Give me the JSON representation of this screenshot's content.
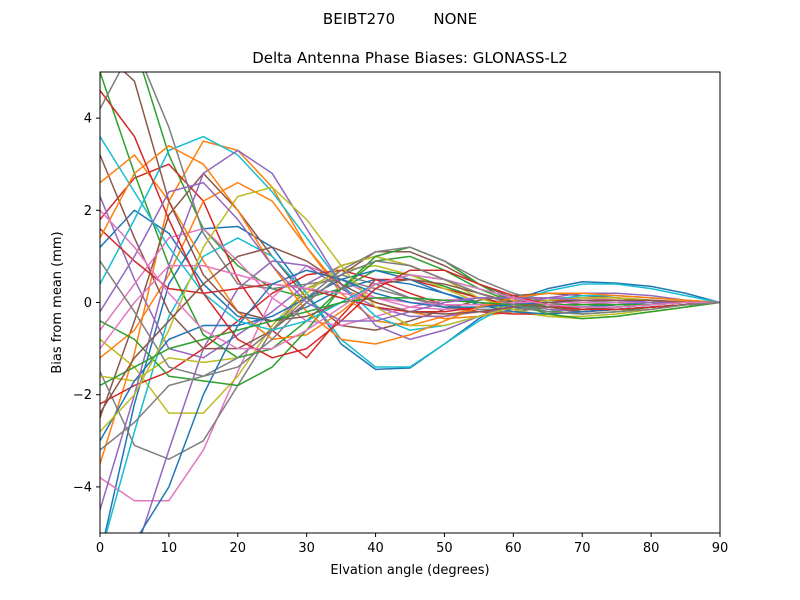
{
  "figure": {
    "suptitle": "BEIBT270        NONE"
  },
  "chart_data": {
    "type": "line",
    "title": "Delta Antenna Phase Biases: GLONASS-L2",
    "xlabel": "Elvation angle (degrees)",
    "ylabel": "Bias from mean (mm)",
    "xlim": [
      0,
      90
    ],
    "ylim": [
      -5,
      5
    ],
    "xticks": [
      0,
      10,
      20,
      30,
      40,
      50,
      60,
      70,
      80,
      90
    ],
    "yticks": [
      -4,
      -2,
      0,
      2,
      4
    ],
    "xtick_labels": [
      "0",
      "10",
      "20",
      "30",
      "40",
      "50",
      "60",
      "70",
      "80",
      "90"
    ],
    "ytick_labels": [
      "−4",
      "−2",
      "0",
      "2",
      "4"
    ],
    "grid": false,
    "legend": "none",
    "colors": [
      "#1f77b4",
      "#ff7f0e",
      "#2ca02c",
      "#d62728",
      "#9467bd",
      "#8c564b",
      "#e377c2",
      "#7f7f7f",
      "#bcbd22",
      "#17becf"
    ],
    "x": [
      0,
      5,
      10,
      15,
      20,
      25,
      30,
      35,
      40,
      45,
      50,
      55,
      60,
      65,
      70,
      75,
      80,
      85,
      90
    ],
    "series": [
      {
        "values": [
          -5.5,
          -2.2,
          0.4,
          1.6,
          1.65,
          1.2,
          0.2,
          -0.9,
          -1.45,
          -1.42,
          -0.9,
          -0.35,
          0.05,
          0.3,
          0.45,
          0.42,
          0.35,
          0.2,
          0.0
        ]
      },
      {
        "values": [
          -3.5,
          -1.1,
          2.2,
          3.5,
          3.3,
          2.5,
          1.2,
          0.3,
          0.0,
          -0.2,
          -0.35,
          -0.3,
          -0.2,
          -0.1,
          0.0,
          0.05,
          0.05,
          0.02,
          0.0
        ]
      },
      {
        "values": [
          6.0,
          5.6,
          3.2,
          1.6,
          0.8,
          0.3,
          0.1,
          0.3,
          0.7,
          0.6,
          0.35,
          0.1,
          -0.1,
          -0.2,
          -0.15,
          -0.1,
          -0.05,
          0.0,
          0.0
        ]
      },
      {
        "values": [
          1.8,
          2.7,
          3.0,
          2.2,
          0.5,
          -0.6,
          -1.2,
          -0.3,
          0.5,
          0.5,
          0.3,
          0.1,
          -0.05,
          -0.1,
          -0.1,
          -0.05,
          0.0,
          0.0,
          0.0
        ]
      },
      {
        "values": [
          2.3,
          0.5,
          -1.0,
          -1.2,
          -0.7,
          -0.2,
          0.4,
          0.8,
          1.0,
          0.8,
          0.5,
          0.2,
          0.0,
          -0.15,
          -0.2,
          -0.15,
          -0.1,
          -0.05,
          0.0
        ]
      },
      {
        "values": [
          -2.5,
          -0.4,
          1.9,
          2.8,
          2.0,
          1.0,
          0.1,
          -0.5,
          -0.6,
          -0.4,
          -0.15,
          0.05,
          0.15,
          0.2,
          0.15,
          0.1,
          0.05,
          0.0,
          0.0
        ]
      },
      {
        "values": [
          -3.8,
          -4.3,
          -4.3,
          -3.2,
          -1.5,
          0.1,
          0.8,
          0.5,
          0.1,
          -0.1,
          -0.15,
          -0.1,
          -0.05,
          0.0,
          0.05,
          0.05,
          0.05,
          0.0,
          0.0
        ]
      },
      {
        "values": [
          -1.5,
          -3.1,
          -3.4,
          -3.0,
          -1.8,
          -0.6,
          0.3,
          0.6,
          0.4,
          0.1,
          -0.1,
          -0.2,
          -0.2,
          -0.1,
          0.0,
          0.05,
          0.05,
          0.0,
          0.0
        ]
      },
      {
        "values": [
          -0.8,
          -1.4,
          -2.4,
          -2.4,
          -1.6,
          -0.5,
          0.3,
          0.7,
          0.8,
          0.6,
          0.3,
          0.0,
          -0.2,
          -0.3,
          -0.3,
          -0.25,
          -0.15,
          -0.05,
          0.0
        ]
      },
      {
        "values": [
          -5.5,
          -2.8,
          -0.3,
          1.0,
          1.4,
          1.0,
          0.2,
          -0.8,
          -1.4,
          -1.4,
          -0.9,
          -0.4,
          0.0,
          0.25,
          0.4,
          0.4,
          0.3,
          0.15,
          0.0
        ]
      },
      {
        "values": [
          1.2,
          2.0,
          1.5,
          0.4,
          -0.3,
          -0.4,
          -0.1,
          0.3,
          0.5,
          0.4,
          0.2,
          0.0,
          -0.1,
          -0.1,
          -0.1,
          -0.05,
          0.0,
          0.0,
          0.0
        ]
      },
      {
        "values": [
          -1.2,
          -0.6,
          0.6,
          2.2,
          2.6,
          2.2,
          1.2,
          0.2,
          -0.4,
          -0.5,
          -0.3,
          -0.1,
          0.05,
          0.1,
          0.1,
          0.1,
          0.05,
          0.0,
          0.0
        ]
      },
      {
        "values": [
          5.0,
          2.8,
          0.8,
          -0.7,
          -1.2,
          -1.0,
          -0.4,
          0.3,
          0.9,
          1.0,
          0.7,
          0.3,
          0.0,
          -0.2,
          -0.25,
          -0.2,
          -0.1,
          -0.05,
          0.0
        ]
      },
      {
        "values": [
          -2.2,
          -1.8,
          -1.5,
          -1.0,
          -0.4,
          0.2,
          0.6,
          0.7,
          0.5,
          0.2,
          -0.05,
          -0.2,
          -0.25,
          -0.25,
          -0.2,
          -0.15,
          -0.1,
          -0.05,
          0.0
        ]
      },
      {
        "values": [
          -6.0,
          -5.5,
          -3.2,
          -1.0,
          0.3,
          0.9,
          0.8,
          0.3,
          -0.1,
          -0.3,
          -0.3,
          -0.2,
          -0.1,
          0.0,
          0.05,
          0.05,
          0.05,
          0.0,
          0.0
        ]
      },
      {
        "values": [
          3.2,
          1.4,
          -0.2,
          -1.0,
          -1.0,
          -0.6,
          0.0,
          0.6,
          1.1,
          1.1,
          0.8,
          0.4,
          0.1,
          -0.1,
          -0.2,
          -0.15,
          -0.1,
          -0.05,
          0.0
        ]
      },
      {
        "values": [
          -0.6,
          0.4,
          1.4,
          1.6,
          0.9,
          0.1,
          -0.4,
          -0.5,
          -0.3,
          -0.1,
          0.05,
          0.1,
          0.1,
          0.1,
          0.1,
          0.05,
          0.05,
          0.0,
          0.0
        ]
      },
      {
        "values": [
          4.2,
          5.6,
          3.8,
          1.5,
          0.4,
          0.3,
          0.4,
          0.5,
          0.3,
          0.1,
          -0.05,
          -0.15,
          -0.15,
          -0.1,
          -0.05,
          0.0,
          0.0,
          0.0,
          0.0
        ]
      },
      {
        "values": [
          -1.6,
          -1.7,
          -1.2,
          -1.3,
          -1.2,
          -0.6,
          0.2,
          0.8,
          1.0,
          0.8,
          0.5,
          0.1,
          -0.15,
          -0.3,
          -0.35,
          -0.3,
          -0.2,
          -0.1,
          0.0
        ]
      },
      {
        "values": [
          0.4,
          1.8,
          3.3,
          3.6,
          3.2,
          2.4,
          1.4,
          0.4,
          -0.3,
          -0.6,
          -0.5,
          -0.3,
          -0.1,
          0.05,
          0.15,
          0.15,
          0.1,
          0.05,
          0.0
        ]
      },
      {
        "values": [
          -3.0,
          -1.7,
          -0.8,
          -0.5,
          -0.5,
          -0.3,
          0.1,
          0.5,
          0.7,
          0.5,
          0.2,
          -0.05,
          -0.2,
          -0.25,
          -0.2,
          -0.15,
          -0.1,
          -0.05,
          0.0
        ]
      },
      {
        "values": [
          2.6,
          3.2,
          2.2,
          0.9,
          -0.2,
          -0.8,
          -0.7,
          -0.2,
          0.4,
          0.6,
          0.5,
          0.2,
          0.0,
          -0.1,
          -0.15,
          -0.1,
          -0.05,
          0.0,
          0.0
        ]
      },
      {
        "values": [
          -0.4,
          -0.8,
          -1.6,
          -1.7,
          -1.8,
          -1.4,
          -0.6,
          0.3,
          1.0,
          1.2,
          0.9,
          0.4,
          0.0,
          -0.25,
          -0.35,
          -0.3,
          -0.2,
          -0.1,
          0.0
        ]
      },
      {
        "values": [
          1.6,
          0.9,
          0.3,
          0.2,
          0.3,
          0.4,
          0.3,
          0.1,
          -0.1,
          -0.2,
          -0.2,
          -0.1,
          0.0,
          0.05,
          0.05,
          0.05,
          0.0,
          0.0,
          0.0
        ]
      },
      {
        "values": [
          -4.5,
          -2.0,
          0.8,
          2.8,
          3.3,
          2.8,
          1.6,
          0.4,
          -0.5,
          -0.8,
          -0.6,
          -0.3,
          -0.05,
          0.1,
          0.2,
          0.2,
          0.15,
          0.05,
          0.0
        ]
      },
      {
        "values": [
          5.5,
          4.8,
          2.2,
          0.6,
          -0.2,
          -0.4,
          -0.3,
          0.0,
          0.4,
          0.5,
          0.4,
          0.2,
          0.0,
          -0.1,
          -0.15,
          -0.1,
          -0.05,
          0.0,
          0.0
        ]
      },
      {
        "values": [
          -1.0,
          0.0,
          0.8,
          0.8,
          0.6,
          0.4,
          0.3,
          0.2,
          0.1,
          0.0,
          -0.05,
          -0.05,
          0.0,
          0.0,
          0.0,
          0.0,
          0.0,
          0.0,
          0.0
        ]
      },
      {
        "values": [
          0.9,
          -0.2,
          -1.4,
          -1.6,
          -1.2,
          -0.6,
          0.1,
          0.7,
          1.1,
          1.2,
          0.9,
          0.5,
          0.2,
          0.0,
          -0.1,
          -0.1,
          -0.05,
          0.0,
          0.0
        ]
      },
      {
        "values": [
          -2.8,
          -2.0,
          -0.6,
          1.2,
          2.3,
          2.5,
          1.8,
          0.8,
          -0.1,
          -0.5,
          -0.5,
          -0.3,
          -0.1,
          0.05,
          0.1,
          0.1,
          0.05,
          0.0,
          0.0
        ]
      },
      {
        "values": [
          3.6,
          2.4,
          1.2,
          0.2,
          -0.4,
          -0.6,
          -0.4,
          0.0,
          0.4,
          0.6,
          0.5,
          0.3,
          0.1,
          -0.05,
          -0.1,
          -0.1,
          -0.05,
          0.0,
          0.0
        ]
      },
      {
        "values": [
          -5.0,
          -5.2,
          -4.0,
          -2.0,
          -0.5,
          0.4,
          0.7,
          0.5,
          0.2,
          0.0,
          -0.1,
          -0.1,
          -0.05,
          0.0,
          0.05,
          0.05,
          0.0,
          0.0,
          0.0
        ]
      },
      {
        "values": [
          1.4,
          2.8,
          3.4,
          3.0,
          2.0,
          0.8,
          -0.2,
          -0.8,
          -0.9,
          -0.7,
          -0.4,
          -0.1,
          0.1,
          0.2,
          0.2,
          0.15,
          0.1,
          0.05,
          0.0
        ]
      },
      {
        "values": [
          -1.8,
          -1.4,
          -1.0,
          -0.8,
          -0.6,
          -0.4,
          -0.2,
          0.0,
          0.1,
          0.1,
          0.05,
          0.0,
          -0.05,
          -0.05,
          -0.05,
          -0.05,
          -0.05,
          0.0,
          0.0
        ]
      },
      {
        "values": [
          4.6,
          3.6,
          1.8,
          0.2,
          -0.8,
          -1.2,
          -1.0,
          -0.4,
          0.3,
          0.7,
          0.7,
          0.4,
          0.15,
          -0.05,
          -0.15,
          -0.15,
          -0.1,
          -0.05,
          0.0
        ]
      },
      {
        "values": [
          -0.2,
          1.0,
          2.4,
          2.6,
          1.8,
          0.8,
          0.0,
          -0.4,
          -0.4,
          -0.2,
          0.0,
          0.1,
          0.1,
          0.1,
          0.05,
          0.05,
          0.0,
          0.0,
          0.0
        ]
      },
      {
        "values": [
          -2.4,
          -1.2,
          -0.4,
          0.4,
          1.0,
          1.2,
          0.9,
          0.4,
          0.0,
          -0.2,
          -0.25,
          -0.2,
          -0.1,
          0.0,
          0.05,
          0.05,
          0.05,
          0.0,
          0.0
        ]
      },
      {
        "values": [
          2.0,
          1.2,
          0.2,
          -0.6,
          -1.0,
          -1.0,
          -0.6,
          -0.1,
          0.4,
          0.6,
          0.5,
          0.3,
          0.1,
          -0.05,
          -0.1,
          -0.1,
          -0.05,
          0.0,
          0.0
        ]
      },
      {
        "values": [
          -3.2,
          -2.6,
          -1.8,
          -1.6,
          -1.4,
          -0.8,
          0.0,
          0.6,
          0.9,
          0.8,
          0.5,
          0.2,
          -0.05,
          -0.2,
          -0.25,
          -0.2,
          -0.15,
          -0.05,
          0.0
        ]
      }
    ]
  }
}
